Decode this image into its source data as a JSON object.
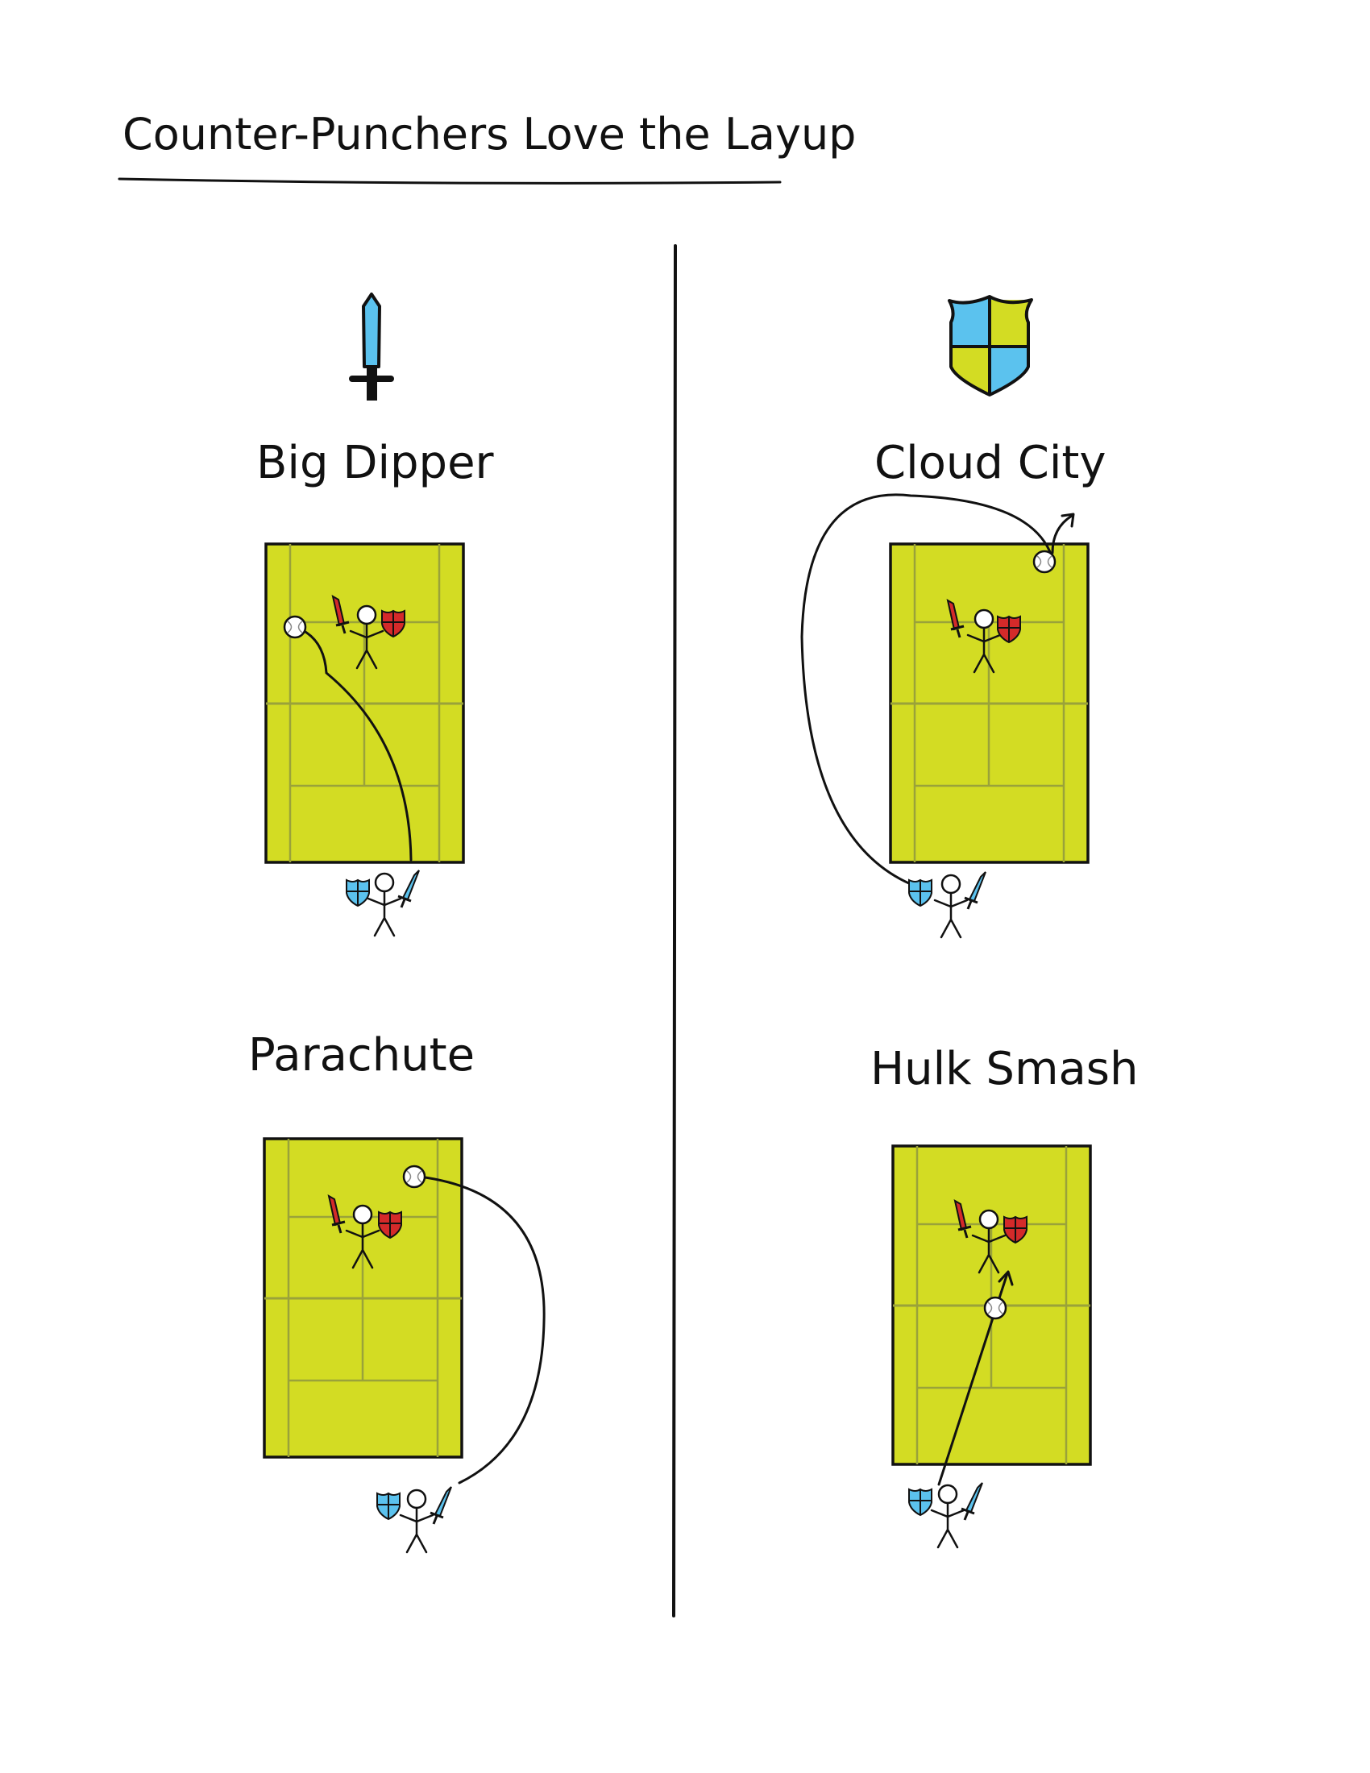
{
  "title": "Counter-Punchers Love the Layup",
  "columns": [
    {
      "icon": "sword-icon"
    },
    {
      "icon": "shield-icon"
    }
  ],
  "panels": [
    {
      "name": "Big Dipper"
    },
    {
      "name": "Cloud City"
    },
    {
      "name": "Parachute"
    },
    {
      "name": "Hulk Smash"
    }
  ],
  "colors": {
    "court": "#d3dc23",
    "court_lines": "#9aa23a",
    "attacker": "#5bc2ee",
    "defender": "#d42a2a",
    "ink": "#111111"
  }
}
